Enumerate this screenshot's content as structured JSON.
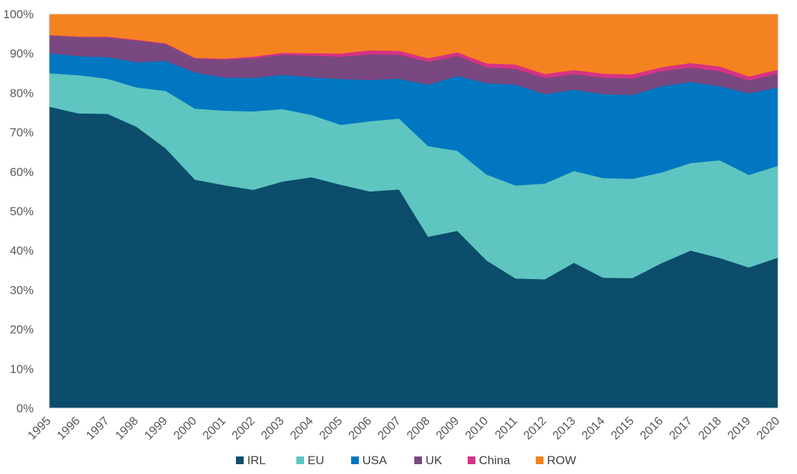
{
  "chart_data": {
    "type": "area",
    "stacked": true,
    "normalized_percent": true,
    "title": "",
    "xlabel": "",
    "ylabel": "",
    "ylim": [
      0,
      100
    ],
    "y_ticks": [
      "0%",
      "10%",
      "20%",
      "30%",
      "40%",
      "50%",
      "60%",
      "70%",
      "80%",
      "90%",
      "100%"
    ],
    "categories": [
      "1995",
      "1996",
      "1997",
      "1998",
      "1999",
      "2000",
      "2001",
      "2002",
      "2003",
      "2004",
      "2005",
      "2006",
      "2007",
      "2008",
      "2009",
      "2010",
      "2011",
      "2012",
      "2013",
      "2014",
      "2015",
      "2016",
      "2017",
      "2018",
      "2019",
      "2020"
    ],
    "legend_position": "bottom",
    "series": [
      {
        "name": "IRL",
        "color": "#0B4D6A",
        "values": [
          76.5,
          74.8,
          74.7,
          71.4,
          65.9,
          58.0,
          56.6,
          55.4,
          57.5,
          58.6,
          56.7,
          55.0,
          55.5,
          43.5,
          45.0,
          37.5,
          32.9,
          32.7,
          36.9,
          33.1,
          33.0,
          36.8,
          40.0,
          38.1,
          35.7,
          38.2
        ]
      },
      {
        "name": "EU",
        "color": "#5FC5C1",
        "values": [
          8.5,
          9.7,
          8.9,
          10.0,
          14.6,
          18.0,
          18.9,
          19.9,
          18.4,
          15.8,
          15.2,
          17.8,
          18.0,
          23.0,
          20.3,
          21.8,
          23.6,
          24.3,
          23.3,
          25.3,
          25.2,
          23.0,
          22.2,
          24.8,
          23.5,
          23.3
        ]
      },
      {
        "name": "USA",
        "color": "#0077C0",
        "values": [
          5.1,
          4.8,
          5.5,
          6.4,
          7.6,
          9.2,
          8.4,
          8.5,
          8.7,
          9.6,
          11.6,
          10.5,
          10.1,
          15.6,
          19.0,
          23.2,
          25.6,
          22.7,
          20.6,
          21.3,
          21.3,
          21.9,
          20.6,
          18.8,
          20.7,
          19.9
        ]
      },
      {
        "name": "UK",
        "color": "#7A4880",
        "values": [
          4.5,
          4.9,
          5.0,
          5.5,
          4.3,
          3.5,
          4.6,
          5.0,
          5.1,
          5.5,
          5.7,
          6.5,
          6.1,
          5.8,
          5.1,
          4.0,
          4.0,
          4.1,
          4.0,
          4.2,
          4.2,
          3.8,
          3.7,
          3.8,
          3.3,
          3.5
        ]
      },
      {
        "name": "China",
        "color": "#D63384",
        "values": [
          0.1,
          0.1,
          0.2,
          0.2,
          0.2,
          0.2,
          0.2,
          0.4,
          0.5,
          0.6,
          0.8,
          1.0,
          1.0,
          0.9,
          0.9,
          1.0,
          1.1,
          1.0,
          1.0,
          1.0,
          1.0,
          1.0,
          1.1,
          1.2,
          1.0,
          1.0
        ]
      },
      {
        "name": "ROW",
        "color": "#F58220",
        "values": [
          5.3,
          5.7,
          5.7,
          6.5,
          7.4,
          11.1,
          11.3,
          10.8,
          9.8,
          9.9,
          10.0,
          9.2,
          9.3,
          11.2,
          9.7,
          12.5,
          12.8,
          15.2,
          14.2,
          15.1,
          15.3,
          13.5,
          12.4,
          13.3,
          15.8,
          14.1
        ]
      }
    ]
  }
}
